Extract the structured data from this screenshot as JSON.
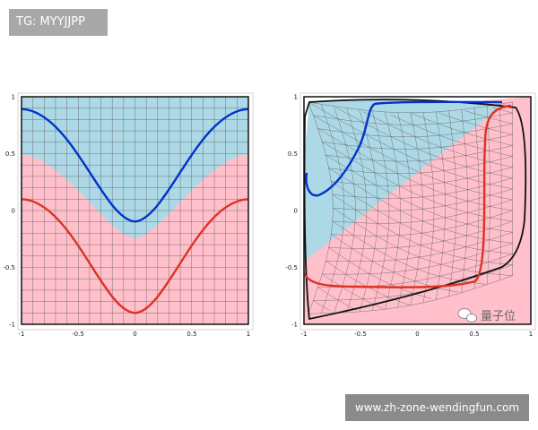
{
  "badges": {
    "tg": "TG: MYYJJPP",
    "url": "www.zh-zone-wendingfun.com"
  },
  "watermark": {
    "text": "量子位"
  },
  "colors": {
    "blue_region": "#add8e6",
    "pink_region": "#ffc0cb",
    "blue_curve": "#0033cc",
    "red_curve": "#dd3322",
    "grid": "#555555"
  },
  "chart_data": [
    {
      "type": "line",
      "title": "",
      "xlabel": "",
      "ylabel": "",
      "xlim": [
        -1,
        1
      ],
      "ylim": [
        -1,
        1
      ],
      "x_ticks": [
        "-1",
        "-0.5",
        "0",
        "0.5",
        "1"
      ],
      "y_ticks": [
        "1",
        "0.5",
        "0",
        "-0.5",
        "-1"
      ],
      "grid": "uniform square grid",
      "regions": [
        {
          "color": "blue",
          "description": "above boundary curve"
        },
        {
          "color": "pink",
          "description": "below boundary curve"
        }
      ],
      "boundary_x": [
        -1,
        -0.5,
        0,
        0.5,
        1
      ],
      "boundary_y": [
        0.5,
        0.12,
        -0.25,
        0.12,
        0.5
      ],
      "series": [
        {
          "color": "blue",
          "x": [
            -1,
            -0.75,
            -0.5,
            -0.25,
            0,
            0.25,
            0.5,
            0.75,
            1
          ],
          "y": [
            0.9,
            0.75,
            0.4,
            0.05,
            -0.1,
            0.05,
            0.4,
            0.75,
            0.9
          ]
        },
        {
          "color": "red",
          "x": [
            -1,
            -0.75,
            -0.5,
            -0.25,
            0,
            0.25,
            0.5,
            0.75,
            1
          ],
          "y": [
            0.1,
            -0.05,
            -0.4,
            -0.75,
            -0.9,
            -0.75,
            -0.4,
            -0.05,
            0.1
          ]
        }
      ]
    },
    {
      "type": "line",
      "title": "",
      "xlabel": "",
      "ylabel": "",
      "xlim": [
        -1,
        1
      ],
      "ylim": [
        -1,
        1
      ],
      "x_ticks": [
        "-1",
        "-0.5",
        "0",
        "0.5",
        "1"
      ],
      "y_ticks": [
        "1",
        "0.5",
        "0",
        "-0.5",
        "-1"
      ],
      "grid": "warped (deformed) grid",
      "regions": [
        {
          "color": "blue",
          "description": "upper-left of diagonal boundary"
        },
        {
          "color": "pink",
          "description": "lower-right of diagonal boundary"
        }
      ],
      "boundary_x": [
        -1,
        0.55
      ],
      "boundary_y": [
        -0.45,
        0.95
      ],
      "series": [
        {
          "color": "blue",
          "x": [
            -0.97,
            -0.95,
            -0.8,
            -0.6,
            -0.45,
            -0.4,
            -0.35,
            0,
            0.6
          ],
          "y": [
            0.32,
            0.12,
            0.15,
            0.35,
            0.65,
            0.9,
            0.95,
            0.96,
            0.96
          ]
        },
        {
          "color": "red",
          "x": [
            -1,
            -0.85,
            -0.5,
            0,
            0.45,
            0.58,
            0.6,
            0.62,
            0.7,
            0.85
          ],
          "y": [
            -0.55,
            -0.65,
            -0.67,
            -0.67,
            -0.65,
            -0.4,
            0.2,
            0.7,
            0.83,
            0.88
          ]
        }
      ]
    }
  ]
}
